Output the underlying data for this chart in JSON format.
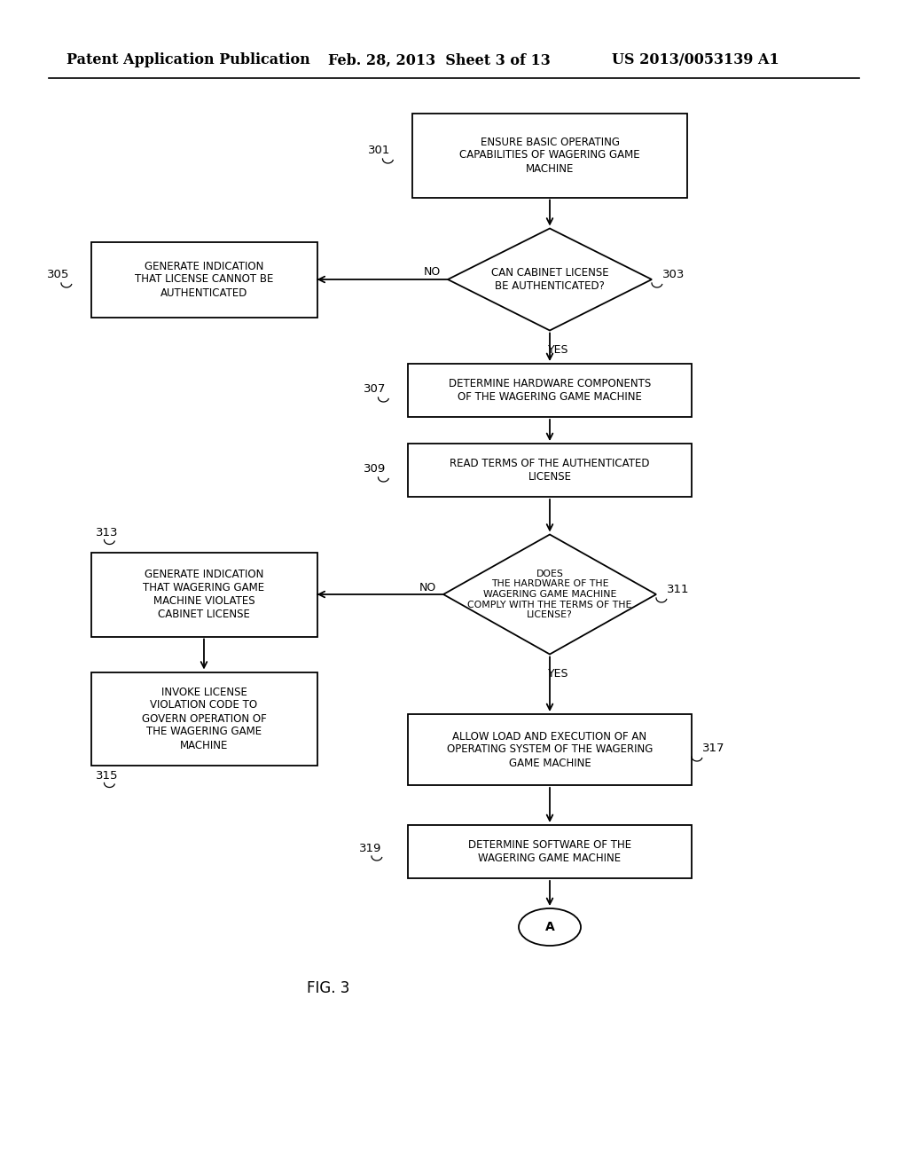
{
  "bg_color": "#ffffff",
  "header_left": "Patent Application Publication",
  "header_mid": "Feb. 28, 2013  Sheet 3 of 13",
  "header_right": "US 2013/0053139 A1",
  "fig_label": "FIG. 3",
  "nodes": {
    "301_text": "ENSURE BASIC OPERATING\nCAPABILITIES OF WAGERING GAME\nMACHINE",
    "303_text": "CAN CABINET LICENSE\nBE AUTHENTICATED?",
    "305_text": "GENERATE INDICATION\nTHAT LICENSE CANNOT BE\nAUTHENTICATED",
    "307_text": "DETERMINE HARDWARE COMPONENTS\nOF THE WAGERING GAME MACHINE",
    "309_text": "READ TERMS OF THE AUTHENTICATED\nLICENSE",
    "311_text": "DOES\nTHE HARDWARE OF THE\nWAGERING GAME MACHINE\nCOMPLY WITH THE TERMS OF THE\nLICENSE?",
    "313_text": "GENERATE INDICATION\nTHAT WAGERING GAME\nMACHINE VIOLATES\nCABINET LICENSE",
    "315_text": "INVOKE LICENSE\nVIOLATION CODE TO\nGOVERN OPERATION OF\nTHE WAGERING GAME\nMACHINE",
    "317_text": "ALLOW LOAD AND EXECUTION OF AN\nOPERATING SYSTEM OF THE WAGERING\nGAME MACHINE",
    "319_text": "DETERMINE SOFTWARE OF THE\nWAGERING GAME MACHINE",
    "A_text": "A"
  }
}
